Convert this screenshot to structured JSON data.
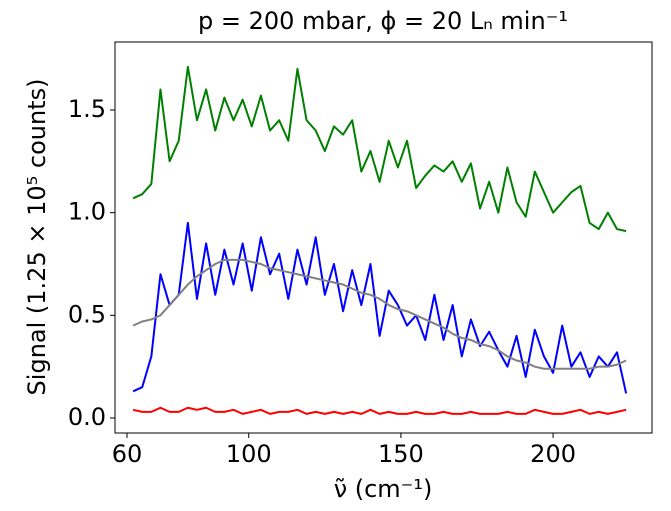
{
  "chart_data": {
    "type": "line",
    "title": "p = 200 mbar, ϕ = 20 Lₙ min⁻¹",
    "x_label": "ν̃ (cm⁻¹)",
    "y_label": "Signal (1.25 × 10⁵ counts)",
    "x": [
      62,
      65,
      68,
      71,
      74,
      77,
      80,
      83,
      86,
      89,
      92,
      95,
      98,
      101,
      104,
      107,
      110,
      113,
      116,
      119,
      122,
      125,
      128,
      131,
      134,
      137,
      140,
      143,
      146,
      149,
      152,
      155,
      158,
      161,
      164,
      167,
      170,
      173,
      176,
      179,
      182,
      185,
      188,
      191,
      194,
      197,
      200,
      203,
      206,
      209,
      212,
      215,
      218,
      221,
      224
    ],
    "series": [
      {
        "color": "#008000",
        "values": [
          1.07,
          1.09,
          1.14,
          1.6,
          1.25,
          1.35,
          1.71,
          1.45,
          1.6,
          1.4,
          1.56,
          1.45,
          1.55,
          1.42,
          1.57,
          1.4,
          1.45,
          1.35,
          1.7,
          1.45,
          1.4,
          1.3,
          1.42,
          1.38,
          1.45,
          1.2,
          1.3,
          1.15,
          1.35,
          1.22,
          1.35,
          1.12,
          1.18,
          1.23,
          1.2,
          1.25,
          1.15,
          1.24,
          1.02,
          1.15,
          1.0,
          1.22,
          1.05,
          0.98,
          1.2,
          1.1,
          1.0,
          1.05,
          1.1,
          1.13,
          0.95,
          0.92,
          1.0,
          0.92,
          0.91
        ]
      },
      {
        "color": "#0000ff",
        "values": [
          0.13,
          0.15,
          0.3,
          0.7,
          0.55,
          0.6,
          0.95,
          0.58,
          0.85,
          0.6,
          0.82,
          0.65,
          0.85,
          0.62,
          0.88,
          0.7,
          0.8,
          0.58,
          0.82,
          0.65,
          0.88,
          0.6,
          0.75,
          0.52,
          0.72,
          0.55,
          0.75,
          0.4,
          0.62,
          0.55,
          0.45,
          0.5,
          0.38,
          0.6,
          0.38,
          0.55,
          0.3,
          0.48,
          0.35,
          0.42,
          0.33,
          0.25,
          0.4,
          0.2,
          0.43,
          0.3,
          0.22,
          0.45,
          0.25,
          0.32,
          0.2,
          0.3,
          0.25,
          0.32,
          0.12
        ]
      },
      {
        "color": "#808080",
        "values": [
          0.45,
          0.47,
          0.48,
          0.5,
          0.55,
          0.6,
          0.65,
          0.69,
          0.72,
          0.75,
          0.77,
          0.77,
          0.77,
          0.76,
          0.75,
          0.73,
          0.72,
          0.71,
          0.7,
          0.69,
          0.68,
          0.67,
          0.66,
          0.65,
          0.63,
          0.61,
          0.6,
          0.58,
          0.55,
          0.53,
          0.52,
          0.5,
          0.48,
          0.46,
          0.44,
          0.41,
          0.39,
          0.38,
          0.36,
          0.35,
          0.33,
          0.3,
          0.28,
          0.27,
          0.25,
          0.24,
          0.24,
          0.24,
          0.24,
          0.24,
          0.24,
          0.25,
          0.25,
          0.26,
          0.28
        ]
      },
      {
        "color": "#ff0000",
        "values": [
          0.04,
          0.03,
          0.03,
          0.05,
          0.03,
          0.03,
          0.05,
          0.04,
          0.05,
          0.03,
          0.03,
          0.04,
          0.02,
          0.03,
          0.04,
          0.02,
          0.03,
          0.03,
          0.04,
          0.02,
          0.03,
          0.02,
          0.03,
          0.02,
          0.03,
          0.02,
          0.04,
          0.02,
          0.03,
          0.02,
          0.02,
          0.03,
          0.02,
          0.02,
          0.03,
          0.02,
          0.02,
          0.03,
          0.02,
          0.02,
          0.02,
          0.03,
          0.02,
          0.02,
          0.04,
          0.03,
          0.02,
          0.02,
          0.03,
          0.04,
          0.02,
          0.03,
          0.02,
          0.03,
          0.04
        ]
      }
    ],
    "xlim": [
      56.06,
      232.5
    ],
    "ylim": [
      -0.073,
      1.831
    ],
    "xticks": [
      60,
      100,
      150,
      200
    ],
    "yticks": [
      {
        "value": 0,
        "label": "0.0"
      },
      {
        "value": 0.5,
        "label": "0.5"
      },
      {
        "value": 1,
        "label": "1.0"
      },
      {
        "value": 1.5,
        "label": "1.5"
      }
    ]
  }
}
